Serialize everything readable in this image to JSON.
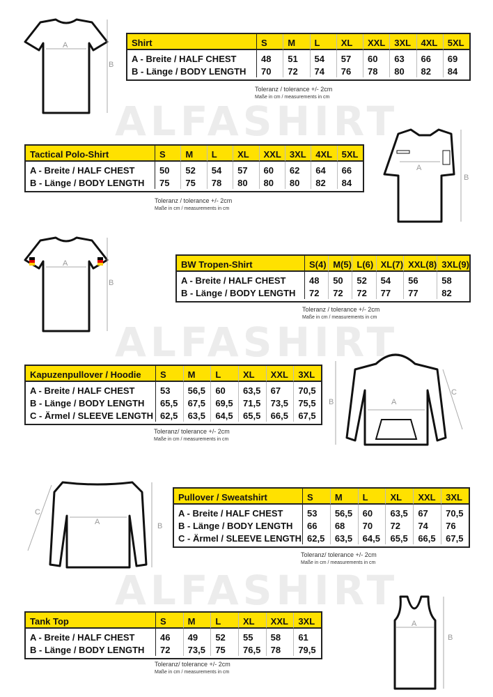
{
  "watermark": "ALFASHIRT",
  "colors": {
    "header_yellow": "#ffe100",
    "border": "#222222",
    "dimension_gray": "#999999"
  },
  "note": {
    "tolerance": "Toleranz / tolerance +/- 2cm",
    "tolerance_alt": "Toleranz/ tolerance +/- 2cm",
    "units": "Maße in cm / measurements in cm"
  },
  "tables": [
    {
      "id": "shirt",
      "title": "Shirt",
      "sizes": [
        "S",
        "M",
        "L",
        "XL",
        "XXL",
        "3XL",
        "4XL",
        "5XL"
      ],
      "rows": [
        {
          "label": "A -  Breite / HALF CHEST",
          "values": [
            "48",
            "51",
            "54",
            "57",
            "60",
            "63",
            "66",
            "69"
          ]
        },
        {
          "label": "B -  Länge / BODY LENGTH",
          "values": [
            "70",
            "72",
            "74",
            "76",
            "78",
            "80",
            "82",
            "84"
          ]
        }
      ],
      "note_variant": "tolerance",
      "diagram_labels": [
        "A",
        "B"
      ]
    },
    {
      "id": "polo",
      "title": "Tactical Polo-Shirt",
      "sizes": [
        "S",
        "M",
        "L",
        "XL",
        "XXL",
        "3XL",
        "4XL",
        "5XL"
      ],
      "rows": [
        {
          "label": "A -  Breite / HALF CHEST",
          "values": [
            "50",
            "52",
            "54",
            "57",
            "60",
            "62",
            "64",
            "66"
          ]
        },
        {
          "label": "B -  Länge / BODY LENGTH",
          "values": [
            "75",
            "75",
            "78",
            "80",
            "80",
            "80",
            "82",
            "84"
          ]
        }
      ],
      "note_variant": "tolerance",
      "diagram_labels": [
        "A",
        "B"
      ]
    },
    {
      "id": "bw",
      "title": "BW Tropen-Shirt",
      "sizes": [
        "S(4)",
        "M(5)",
        "L(6)",
        "XL(7)",
        "XXL(8)",
        "3XL(9)"
      ],
      "rows": [
        {
          "label": "A -  Breite / HALF CHEST",
          "values": [
            "48",
            "50",
            "52",
            "54",
            "56",
            "58"
          ]
        },
        {
          "label": "B -  Länge / BODY LENGTH",
          "values": [
            "72",
            "72",
            "72",
            "77",
            "77",
            "82"
          ]
        }
      ],
      "note_variant": "tolerance",
      "diagram_labels": [
        "A",
        "B"
      ]
    },
    {
      "id": "hoodie",
      "title": "Kapuzenpullover / Hoodie",
      "sizes": [
        "S",
        "M",
        "L",
        "XL",
        "XXL",
        "3XL"
      ],
      "rows": [
        {
          "label": "A -  Breite / HALF CHEST",
          "values": [
            "53",
            "56,5",
            "60",
            "63,5",
            "67",
            "70,5"
          ]
        },
        {
          "label": "B -  Länge / BODY LENGTH",
          "values": [
            "65,5",
            "67,5",
            "69,5",
            "71,5",
            "73,5",
            "75,5"
          ]
        },
        {
          "label": "C -  Ärmel / SLEEVE LENGTH",
          "values": [
            "62,5",
            "63,5",
            "64,5",
            "65,5",
            "66,5",
            "67,5"
          ]
        }
      ],
      "note_variant": "tolerance_alt",
      "diagram_labels": [
        "A",
        "B",
        "C"
      ]
    },
    {
      "id": "pullover",
      "title": "Pullover / Sweatshirt",
      "sizes": [
        "S",
        "M",
        "L",
        "XL",
        "XXL",
        "3XL"
      ],
      "rows": [
        {
          "label": "A -  Breite / HALF CHEST",
          "values": [
            "53",
            "56,5",
            "60",
            "63,5",
            "67",
            "70,5"
          ]
        },
        {
          "label": "B -  Länge / BODY LENGTH",
          "values": [
            "66",
            "68",
            "70",
            "72",
            "74",
            "76"
          ]
        },
        {
          "label": "C -  Ärmel / SLEEVE LENGTH",
          "values": [
            "62,5",
            "63,5",
            "64,5",
            "65,5",
            "66,5",
            "67,5"
          ]
        }
      ],
      "note_variant": "tolerance_alt",
      "diagram_labels": [
        "A",
        "B",
        "C"
      ]
    },
    {
      "id": "tank",
      "title": "Tank Top",
      "sizes": [
        "S",
        "M",
        "L",
        "XL",
        "XXL",
        "3XL"
      ],
      "rows": [
        {
          "label": "A -  Breite / HALF CHEST",
          "values": [
            "46",
            "49",
            "52",
            "55",
            "58",
            "61"
          ]
        },
        {
          "label": "B -  Länge / BODY LENGTH",
          "values": [
            "72",
            "73,5",
            "75",
            "76,5",
            "78",
            "79,5"
          ]
        }
      ],
      "note_variant": "tolerance_alt",
      "diagram_labels": [
        "A",
        "B"
      ]
    }
  ]
}
